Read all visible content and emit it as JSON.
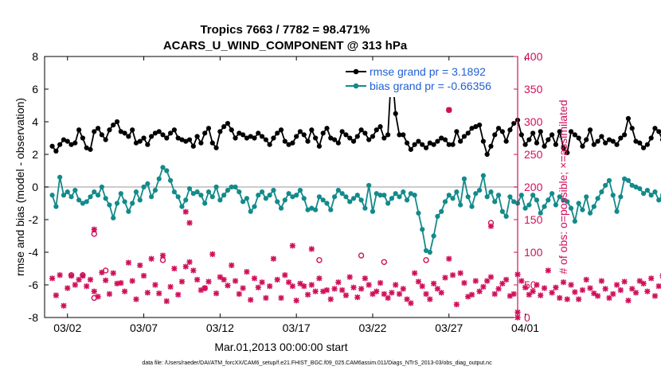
{
  "chart_data": {
    "type": "line",
    "title_line1": "Tropics 7663 / 7782 = 98.471%",
    "title_line2": "ACARS_U_WIND_COMPONENT @ 313 hPa",
    "xlabel": "Mar.01,2013 00:00:00 start",
    "ylabel_left": "rmse and bias (model - observation)",
    "ylabel_right": "# of obs: o=possible; ×=assimilated",
    "footer": "data file: /Users/raeder/DAI/ATM_forcXX/CAM6_setup/f.e21.FHIST_BGC.f09_025.CAM6assim.011/Diags_NTrS_2013-03/obs_diag_output.nc",
    "xlim": [
      0.5,
      31.5
    ],
    "ylim_left": [
      -8,
      8
    ],
    "ylim_right": [
      0,
      400
    ],
    "x_ticks": [
      2,
      7,
      12,
      17,
      22,
      27,
      32
    ],
    "x_tick_labels": [
      "03/02",
      "03/07",
      "03/12",
      "03/17",
      "03/22",
      "03/27",
      "04/01"
    ],
    "y_ticks_left": [
      "-8",
      "-6",
      "-4",
      "-2",
      "0",
      "2",
      "4",
      "6",
      "8"
    ],
    "y_ticks_right": [
      "0",
      "50",
      "100",
      "150",
      "200",
      "250",
      "300",
      "350",
      "400"
    ],
    "x_step": 0.25,
    "colors": {
      "rmse": "#000000",
      "bias": "#138a8a",
      "obs": "#d0105a",
      "legend_text": "#1f5fd6",
      "zero_line": "#bbbbbb"
    },
    "series": [
      {
        "name": "rmse grand pr = 3.1892",
        "values": [
          2.5,
          2.2,
          2.6,
          2.9,
          2.8,
          2.6,
          2.7,
          3.5,
          3.0,
          2.4,
          2.3,
          3.4,
          3.6,
          3.2,
          2.9,
          3.5,
          3.8,
          4.0,
          3.4,
          3.3,
          3.1,
          3.5,
          2.7,
          2.8,
          3.0,
          2.6,
          3.1,
          3.3,
          3.4,
          3.2,
          3.0,
          3.3,
          3.5,
          3.0,
          2.9,
          2.8,
          2.9,
          2.5,
          3.1,
          2.7,
          3.3,
          3.6,
          2.7,
          2.4,
          3.4,
          3.7,
          3.9,
          3.5,
          3.0,
          3.3,
          3.2,
          3.0,
          3.1,
          3.0,
          3.3,
          3.1,
          2.9,
          2.6,
          3.0,
          3.3,
          3.5,
          2.8,
          2.6,
          2.7,
          3.1,
          3.4,
          3.2,
          2.8,
          3.5,
          3.0,
          2.5,
          3.3,
          3.6,
          3.0,
          2.9,
          2.7,
          3.4,
          3.2,
          3.0,
          2.8,
          3.1,
          3.5,
          3.3,
          2.9,
          3.1,
          3.5,
          3.7,
          3.0,
          3.2,
          7.4,
          4.5,
          3.2,
          3.2,
          2.7,
          2.3,
          2.6,
          2.8,
          2.6,
          2.4,
          2.7,
          2.6,
          2.8,
          3.0,
          2.9,
          2.6,
          2.6,
          3.4,
          2.8,
          3.1,
          3.3,
          3.6,
          3.7,
          3.8,
          2.8,
          2.0,
          2.5,
          3.2,
          3.6,
          3.4,
          2.8,
          3.5,
          3.9,
          4.1,
          3.2,
          2.6,
          2.9,
          3.3,
          2.7,
          3.4,
          2.5,
          2.9,
          3.2,
          2.6,
          3.4,
          2.4,
          2.1,
          3.4,
          3.2,
          3.0,
          2.5,
          2.9,
          3.5,
          2.6,
          2.8,
          3.1,
          2.7,
          2.9,
          2.8,
          2.6,
          3.0,
          3.2,
          4.2,
          3.6,
          2.8,
          2.7,
          2.4,
          2.6,
          3.0,
          3.6,
          3.4,
          2.9,
          3.0,
          3.5,
          2.7,
          3.3,
          3.1,
          2.9,
          2.7,
          3.2,
          3.3,
          2.8,
          2.9,
          3.7,
          3.3,
          3.1,
          3.8,
          3.2,
          3.0
        ]
      },
      {
        "name": "bias grand pr = -0.66356",
        "values": [
          -0.5,
          -1.2,
          0.6,
          -0.5,
          -0.3,
          -0.6,
          -0.2,
          -0.8,
          -1.0,
          -0.9,
          -0.6,
          -0.3,
          -0.5,
          0.0,
          -0.7,
          -1.1,
          -1.9,
          -1.0,
          -0.4,
          -0.9,
          -1.5,
          -1.0,
          -0.3,
          -0.8,
          0.0,
          0.2,
          -0.6,
          -0.2,
          0.5,
          1.2,
          1.0,
          0.4,
          -0.3,
          -0.6,
          -1.2,
          -0.8,
          -0.1,
          -0.4,
          -0.3,
          -0.5,
          -1.0,
          -0.3,
          -0.6,
          0.0,
          -0.8,
          -0.5,
          -0.2,
          0.0,
          0.0,
          -0.3,
          -0.9,
          -0.7,
          -1.5,
          -1.2,
          -0.5,
          -0.3,
          -0.7,
          -0.5,
          -0.2,
          -0.9,
          -1.3,
          -0.8,
          -0.4,
          -0.6,
          -0.5,
          -0.2,
          -0.7,
          -1.4,
          -1.3,
          -1.4,
          -0.6,
          -0.8,
          -1.0,
          -1.4,
          -0.6,
          -0.2,
          -0.4,
          -0.6,
          -0.9,
          -0.7,
          -0.5,
          -0.8,
          -1.3,
          0.1,
          -1.5,
          -0.4,
          -0.5,
          -0.5,
          -1.0,
          -0.7,
          -0.4,
          -0.6,
          -0.3,
          -0.8,
          -0.4,
          -0.5,
          -1.6,
          -2.6,
          -3.9,
          -4.0,
          -3.0,
          -1.8,
          -1.5,
          -0.9,
          -0.5,
          -0.7,
          -0.3,
          -1.1,
          0.5,
          -0.6,
          -1.2,
          -0.4,
          -0.2,
          0.7,
          -0.6,
          -0.3,
          -0.9,
          -0.5,
          -1.5,
          -1.8,
          -0.6,
          -0.9,
          -1.0,
          -0.5,
          -1.3,
          -1.1,
          -0.5,
          -0.8,
          -1.6,
          -1.2,
          -0.8,
          -0.4,
          -1.1,
          -0.6,
          -0.8,
          -0.9,
          -1.3,
          -2.1,
          -1.0,
          -1.4,
          -0.6,
          -1.6,
          -1.2,
          -0.7,
          -0.3,
          0.1,
          0.4,
          -0.5,
          -1.5,
          -0.6,
          0.5,
          0.4,
          0.1,
          0.0,
          -0.1,
          -0.4,
          -0.2,
          -0.5,
          -0.3,
          -0.8,
          -0.5,
          -0.2,
          -0.6,
          -0.9,
          -0.4,
          -0.1,
          0.2,
          -0.6,
          -0.3,
          -0.4,
          -0.5,
          0.0,
          -0.1,
          -0.8,
          -0.3,
          -1.3,
          -0.5,
          -0.4,
          -0.8,
          0.8,
          0.2,
          -0.6,
          -1.2,
          0.8,
          -0.5,
          0.4,
          -0.9,
          -1.4,
          -0.7,
          -0.4,
          -0.9,
          -0.5
        ]
      },
      {
        "name": "obs possible",
        "values": [
          60,
          34,
          65,
          18,
          45,
          64,
          50,
          58,
          64,
          48,
          58,
          40,
          32,
          69,
          57,
          36,
          68,
          52,
          53,
          40,
          84,
          56,
          28,
          80,
          64,
          38,
          90,
          50,
          37,
          95,
          25,
          47,
          75,
          35,
          55,
          78,
          85,
          72,
          58,
          42,
          45,
          55,
          97,
          37,
          62,
          58,
          49,
          80,
          56,
          36,
          45,
          70,
          27,
          60,
          46,
          54,
          30,
          48,
          90,
          58,
          30,
          65,
          54,
          48,
          26,
          52,
          48,
          35,
          50,
          40,
          60,
          40,
          42,
          28,
          44,
          54,
          42,
          34,
          62,
          46,
          31,
          44,
          60,
          50,
          36,
          40,
          53,
          36,
          30,
          38,
          50,
          36,
          44,
          28,
          22,
          68,
          55,
          48,
          36,
          28,
          52,
          44,
          38,
          61,
          90,
          65,
          20,
          68,
          53,
          32,
          35,
          56,
          40,
          47,
          56,
          62,
          36,
          44,
          52,
          58,
          33,
          36,
          66,
          56,
          46,
          35,
          40,
          50,
          34,
          45,
          72,
          38,
          46,
          30,
          54,
          28,
          50,
          39,
          28,
          42,
          58,
          45,
          37,
          33,
          56,
          44,
          30,
          36,
          50,
          42,
          55,
          26,
          44,
          38,
          56,
          52,
          40,
          60,
          33,
          48,
          64,
          36,
          54,
          40,
          30,
          26,
          38,
          56,
          58,
          32,
          45,
          28,
          40,
          50,
          58,
          36,
          54,
          42,
          30,
          32,
          38,
          48,
          48,
          42,
          38,
          44
        ]
      }
    ],
    "obs_extra_markers": [
      {
        "x": 2.25,
        "y": 65,
        "style": "circle"
      },
      {
        "x": 3.0,
        "y": 65,
        "style": "circle"
      },
      {
        "x": 3.75,
        "y": 30,
        "style": "circle"
      },
      {
        "x": 4.5,
        "y": 72,
        "style": "circle"
      },
      {
        "x": 8.25,
        "y": 88,
        "style": "circle"
      },
      {
        "x": 11.0,
        "y": 45,
        "style": "circle"
      },
      {
        "x": 18.5,
        "y": 88,
        "style": "circle"
      },
      {
        "x": 21.25,
        "y": 95,
        "style": "circle"
      },
      {
        "x": 22.75,
        "y": 85,
        "style": "circle"
      },
      {
        "x": 25.5,
        "y": 88,
        "style": "circle"
      },
      {
        "x": 3.75,
        "y": 135,
        "style": "star"
      },
      {
        "x": 3.75,
        "y": 128,
        "style": "circle"
      },
      {
        "x": 9.75,
        "y": 162,
        "style": "star"
      },
      {
        "x": 10.0,
        "y": 145,
        "style": "star"
      },
      {
        "x": 29.75,
        "y": 140,
        "style": "star"
      },
      {
        "x": 29.75,
        "y": 145,
        "style": "circle"
      },
      {
        "x": 27.0,
        "y": 318,
        "style": "star"
      },
      {
        "x": 27.0,
        "y": 318,
        "style": "circle"
      },
      {
        "x": 16.75,
        "y": 110,
        "style": "star"
      },
      {
        "x": 18.0,
        "y": 105,
        "style": "star"
      },
      {
        "x": 31.5,
        "y": 8,
        "style": "star"
      },
      {
        "x": 31.5,
        "y": 0,
        "style": "star"
      }
    ]
  }
}
